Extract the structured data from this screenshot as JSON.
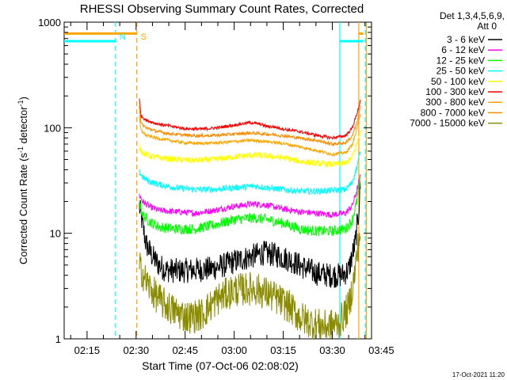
{
  "chart_data": {
    "type": "line",
    "title": "RHESSI Observing Summary Count Rates, Corrected",
    "xlabel": "Start Time (07-Oct-06 02:08:02)",
    "ylabel": "Corrected Count Rate (s",
    "ylabel_sup1": "-1",
    "ylabel_mid": " detector",
    "ylabel_sup2": "-1",
    "ylabel_end": ")",
    "y_scale": "log",
    "ylim": [
      1,
      1000
    ],
    "y_ticks": [
      {
        "value": 1,
        "label": "1"
      },
      {
        "value": 10,
        "label": "10"
      },
      {
        "value": 100,
        "label": "100"
      },
      {
        "value": 1000,
        "label": "1000"
      }
    ],
    "x_range_min": [
      128,
      222
    ],
    "x_ticks": [
      {
        "t": 135,
        "label": "02:15"
      },
      {
        "t": 150,
        "label": "02:30"
      },
      {
        "t": 165,
        "label": "02:45"
      },
      {
        "t": 180,
        "label": "03:00"
      },
      {
        "t": 195,
        "label": "03:15"
      },
      {
        "t": 210,
        "label": "03:30"
      },
      {
        "t": 225,
        "label": "03:45"
      }
    ],
    "legend": {
      "placement": "right",
      "header": [
        "Det 1,3,4,5,6,9,",
        "Att 0"
      ]
    },
    "series": [
      {
        "name": "3 - 6 keV",
        "color": "#000000",
        "points": [
          [
            151,
            18
          ],
          [
            152,
            12
          ],
          [
            153,
            8
          ],
          [
            155,
            6
          ],
          [
            157,
            5
          ],
          [
            159,
            4.5
          ],
          [
            163,
            4.4
          ],
          [
            168,
            4.5
          ],
          [
            173,
            4.6
          ],
          [
            177,
            5.0
          ],
          [
            180,
            5.4
          ],
          [
            185,
            6.0
          ],
          [
            189,
            6.5
          ],
          [
            193,
            6.2
          ],
          [
            197,
            5.6
          ],
          [
            201,
            4.8
          ],
          [
            205,
            4.2
          ],
          [
            209,
            4.0
          ],
          [
            213,
            4.0
          ],
          [
            215,
            4.5
          ],
          [
            217,
            8
          ],
          [
            218,
            15
          ],
          [
            218.6,
            30
          ]
        ]
      },
      {
        "name": "6 - 12 keV",
        "color": "#ff00ff",
        "points": [
          [
            151,
            23
          ],
          [
            152,
            20
          ],
          [
            154,
            18
          ],
          [
            157,
            16.5
          ],
          [
            162,
            16
          ],
          [
            168,
            15.5
          ],
          [
            174,
            16.5
          ],
          [
            180,
            18
          ],
          [
            186,
            19
          ],
          [
            190,
            18.5
          ],
          [
            195,
            17
          ],
          [
            200,
            16
          ],
          [
            205,
            15.5
          ],
          [
            210,
            15
          ],
          [
            214,
            15.5
          ],
          [
            216,
            18
          ],
          [
            217.5,
            25
          ],
          [
            218.6,
            35
          ]
        ]
      },
      {
        "name": "12 - 25 keV",
        "color": "#00ff00",
        "points": [
          [
            151,
            20
          ],
          [
            152,
            15
          ],
          [
            154,
            13
          ],
          [
            157,
            11.5
          ],
          [
            162,
            11
          ],
          [
            168,
            11
          ],
          [
            174,
            12
          ],
          [
            180,
            13.5
          ],
          [
            186,
            14
          ],
          [
            190,
            13.5
          ],
          [
            195,
            12.5
          ],
          [
            200,
            11
          ],
          [
            205,
            10.5
          ],
          [
            210,
            10.5
          ],
          [
            214,
            11
          ],
          [
            216,
            13
          ],
          [
            217.5,
            20
          ],
          [
            218.6,
            32
          ]
        ]
      },
      {
        "name": "25 - 50 keV",
        "color": "#00ffff",
        "points": [
          [
            151,
            38
          ],
          [
            152,
            34
          ],
          [
            154,
            31
          ],
          [
            157,
            29
          ],
          [
            162,
            27
          ],
          [
            168,
            26
          ],
          [
            174,
            26
          ],
          [
            180,
            27
          ],
          [
            186,
            28
          ],
          [
            190,
            27
          ],
          [
            195,
            26
          ],
          [
            200,
            25
          ],
          [
            205,
            25
          ],
          [
            210,
            25.5
          ],
          [
            214,
            26
          ],
          [
            216,
            30
          ],
          [
            217.5,
            42
          ],
          [
            218.6,
            60
          ]
        ]
      },
      {
        "name": "50 - 100 keV",
        "color": "#ffff00",
        "points": [
          [
            151,
            65
          ],
          [
            152,
            58
          ],
          [
            154,
            54
          ],
          [
            157,
            52
          ],
          [
            162,
            50
          ],
          [
            168,
            49
          ],
          [
            174,
            50
          ],
          [
            180,
            53
          ],
          [
            186,
            55
          ],
          [
            190,
            54
          ],
          [
            195,
            52
          ],
          [
            200,
            48
          ],
          [
            205,
            46
          ],
          [
            210,
            45
          ],
          [
            214,
            46
          ],
          [
            216,
            52
          ],
          [
            217.5,
            70
          ],
          [
            218.6,
            95
          ]
        ]
      },
      {
        "name": "100 - 300 keV",
        "color": "#ff0000",
        "points": [
          [
            151,
            185
          ],
          [
            151.5,
            130
          ],
          [
            153,
            118
          ],
          [
            156,
            110
          ],
          [
            160,
            104
          ],
          [
            165,
            98
          ],
          [
            170,
            97
          ],
          [
            175,
            100
          ],
          [
            180,
            106
          ],
          [
            185,
            112
          ],
          [
            188,
            108
          ],
          [
            190,
            103
          ],
          [
            192,
            102
          ],
          [
            196,
            96
          ],
          [
            200,
            92
          ],
          [
            205,
            85
          ],
          [
            210,
            80
          ],
          [
            214,
            84
          ],
          [
            216,
            98
          ],
          [
            217.5,
            135
          ],
          [
            218.6,
            180
          ]
        ]
      },
      {
        "name": "300 - 800 keV",
        "color": "#ffa500",
        "points": [
          [
            151,
            125
          ],
          [
            151.5,
            95
          ],
          [
            153,
            85
          ],
          [
            156,
            80
          ],
          [
            160,
            76
          ],
          [
            165,
            72
          ],
          [
            170,
            71
          ],
          [
            175,
            72
          ],
          [
            180,
            74
          ],
          [
            185,
            76
          ],
          [
            190,
            74
          ],
          [
            195,
            71
          ],
          [
            200,
            66
          ],
          [
            205,
            61
          ],
          [
            210,
            56
          ],
          [
            214,
            58
          ],
          [
            216,
            68
          ],
          [
            217.5,
            95
          ],
          [
            218.6,
            140
          ]
        ]
      },
      {
        "name": "800 - 7000 keV",
        "color": "#ff8c00",
        "points": [
          [
            151,
            160
          ],
          [
            151.5,
            110
          ],
          [
            153,
            100
          ],
          [
            156,
            93
          ],
          [
            160,
            88
          ],
          [
            165,
            85
          ],
          [
            170,
            84
          ],
          [
            175,
            85
          ],
          [
            180,
            87
          ],
          [
            185,
            89
          ],
          [
            190,
            87
          ],
          [
            195,
            84
          ],
          [
            200,
            80
          ],
          [
            205,
            76
          ],
          [
            210,
            70
          ],
          [
            214,
            72
          ],
          [
            216,
            82
          ],
          [
            217.5,
            110
          ],
          [
            218.6,
            160
          ]
        ]
      },
      {
        "name": "7000 - 15000 keV",
        "color": "#8b8b00",
        "points": [
          [
            151,
            4.8
          ],
          [
            152,
            4.2
          ],
          [
            153,
            3.5
          ],
          [
            155,
            2.8
          ],
          [
            158,
            2.2
          ],
          [
            162,
            1.8
          ],
          [
            166,
            1.6
          ],
          [
            170,
            1.7
          ],
          [
            175,
            2.4
          ],
          [
            180,
            2.9
          ],
          [
            186,
            3.0
          ],
          [
            190,
            2.7
          ],
          [
            193,
            2.4
          ],
          [
            197,
            2.0
          ],
          [
            200,
            1.6
          ],
          [
            204,
            1.4
          ],
          [
            208,
            1.3
          ],
          [
            212,
            1.4
          ],
          [
            215,
            2.0
          ],
          [
            216.5,
            3.5
          ],
          [
            217.5,
            6
          ],
          [
            218.6,
            11
          ]
        ]
      }
    ],
    "attenuator_bars": [
      {
        "label": "",
        "color": "#00ffff",
        "value": 660,
        "segments": [
          [
            128,
            143.7
          ],
          [
            212.3,
            219.5
          ]
        ]
      },
      {
        "label": "",
        "color": "#ffa500",
        "value": 780,
        "segments": [
          [
            128,
            150.2
          ],
          [
            218.1,
            219.5
          ]
        ]
      }
    ],
    "state_lines": [
      {
        "t": 143.7,
        "color": "#00ffff",
        "style": "dashed"
      },
      {
        "t": 150.2,
        "color": "#ffa500",
        "style": "dashed"
      },
      {
        "t": 212.3,
        "color": "#00ffff",
        "style": "solid"
      },
      {
        "t": 218.1,
        "color": "#ffa500",
        "style": "solid"
      },
      {
        "t": 220.1,
        "color": "#00ffff",
        "style": "dashed"
      },
      {
        "t": 220.4,
        "color": "#ffa500",
        "style": "solid"
      }
    ],
    "state_markers": [
      {
        "t": 143.7,
        "label": "N",
        "color": "#00ffff"
      },
      {
        "t": 150.2,
        "label": "S",
        "color": "#ffa500"
      }
    ],
    "footer_date": "17-Oct-2021 11:20"
  }
}
